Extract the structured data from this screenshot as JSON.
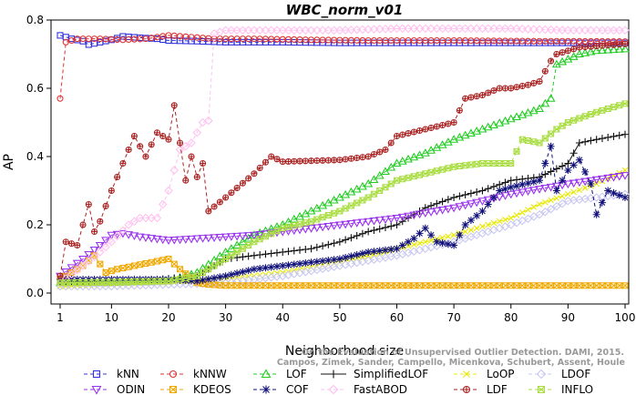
{
  "chart_data": {
    "type": "line",
    "title": "WBC_norm_v01",
    "xlabel": "Neighborhood size",
    "ylabel": "AP",
    "xlim": [
      0,
      100
    ],
    "ylim": [
      0,
      0.8
    ],
    "xticks": [
      1,
      10,
      20,
      30,
      40,
      50,
      60,
      70,
      80,
      90,
      100
    ],
    "yticks": [
      0.0,
      0.2,
      0.4,
      0.6,
      0.8
    ],
    "grid": false,
    "legend_position": "bottom",
    "credit": "Campos, Zimek, Sander, Campello, Micenkova, Schubert, Assent, Houle",
    "credit_line1": "On the Evaluation of Unsupervised Outlier Detection. DAMI, 2015.",
    "series": [
      {
        "name": "kNN",
        "color": "#3333dd",
        "marker": "square",
        "dash": "4,3",
        "points": [
          [
            1,
            0.755
          ],
          [
            3,
            0.745
          ],
          [
            5,
            0.738
          ],
          [
            6,
            0.728
          ],
          [
            8,
            0.735
          ],
          [
            10,
            0.742
          ],
          [
            12,
            0.752
          ],
          [
            15,
            0.748
          ],
          [
            18,
            0.745
          ],
          [
            20,
            0.74
          ],
          [
            25,
            0.738
          ],
          [
            30,
            0.735
          ],
          [
            40,
            0.735
          ],
          [
            50,
            0.733
          ],
          [
            60,
            0.733
          ],
          [
            70,
            0.733
          ],
          [
            80,
            0.733
          ],
          [
            90,
            0.733
          ],
          [
            100,
            0.733
          ]
        ]
      },
      {
        "name": "kNNW",
        "color": "#dd3333",
        "marker": "circle",
        "dash": "4,3",
        "points": [
          [
            1,
            0.57
          ],
          [
            2,
            0.735
          ],
          [
            4,
            0.745
          ],
          [
            8,
            0.745
          ],
          [
            12,
            0.742
          ],
          [
            16,
            0.745
          ],
          [
            20,
            0.755
          ],
          [
            24,
            0.75
          ],
          [
            28,
            0.745
          ],
          [
            35,
            0.745
          ],
          [
            45,
            0.742
          ],
          [
            55,
            0.74
          ],
          [
            70,
            0.74
          ],
          [
            85,
            0.738
          ],
          [
            90,
            0.738
          ],
          [
            100,
            0.737
          ]
        ]
      },
      {
        "name": "LOF",
        "color": "#22cc22",
        "marker": "triangle",
        "dash": "4,3",
        "points": [
          [
            1,
            0.03
          ],
          [
            10,
            0.03
          ],
          [
            20,
            0.035
          ],
          [
            25,
            0.06
          ],
          [
            30,
            0.12
          ],
          [
            35,
            0.17
          ],
          [
            40,
            0.2
          ],
          [
            45,
            0.24
          ],
          [
            50,
            0.28
          ],
          [
            55,
            0.32
          ],
          [
            60,
            0.38
          ],
          [
            65,
            0.41
          ],
          [
            70,
            0.45
          ],
          [
            75,
            0.48
          ],
          [
            80,
            0.51
          ],
          [
            85,
            0.54
          ],
          [
            87,
            0.57
          ],
          [
            88,
            0.67
          ],
          [
            92,
            0.7
          ],
          [
            95,
            0.71
          ],
          [
            100,
            0.715
          ]
        ]
      },
      {
        "name": "SimplifiedLOF",
        "color": "#111111",
        "marker": "plus",
        "dash": "",
        "points": [
          [
            1,
            0.03
          ],
          [
            15,
            0.035
          ],
          [
            25,
            0.05
          ],
          [
            28,
            0.08
          ],
          [
            30,
            0.1
          ],
          [
            35,
            0.11
          ],
          [
            40,
            0.12
          ],
          [
            45,
            0.13
          ],
          [
            50,
            0.15
          ],
          [
            55,
            0.18
          ],
          [
            60,
            0.2
          ],
          [
            65,
            0.25
          ],
          [
            70,
            0.28
          ],
          [
            75,
            0.3
          ],
          [
            80,
            0.33
          ],
          [
            85,
            0.34
          ],
          [
            90,
            0.38
          ],
          [
            92,
            0.44
          ],
          [
            95,
            0.45
          ],
          [
            100,
            0.465
          ]
        ]
      },
      {
        "name": "LoOP",
        "color": "#e8e800",
        "marker": "x",
        "dash": "4,3",
        "points": [
          [
            1,
            0.02
          ],
          [
            10,
            0.025
          ],
          [
            20,
            0.03
          ],
          [
            30,
            0.04
          ],
          [
            40,
            0.06
          ],
          [
            50,
            0.09
          ],
          [
            60,
            0.13
          ],
          [
            70,
            0.17
          ],
          [
            80,
            0.22
          ],
          [
            85,
            0.26
          ],
          [
            90,
            0.29
          ],
          [
            95,
            0.32
          ],
          [
            100,
            0.36
          ]
        ]
      },
      {
        "name": "LDOF",
        "color": "#c8c8f0",
        "marker": "diamond",
        "dash": "4,3",
        "points": [
          [
            1,
            0.02
          ],
          [
            10,
            0.02
          ],
          [
            20,
            0.025
          ],
          [
            30,
            0.03
          ],
          [
            40,
            0.05
          ],
          [
            50,
            0.08
          ],
          [
            60,
            0.11
          ],
          [
            70,
            0.15
          ],
          [
            80,
            0.2
          ],
          [
            85,
            0.23
          ],
          [
            90,
            0.27
          ],
          [
            100,
            0.29
          ]
        ]
      },
      {
        "name": "ODIN",
        "color": "#9933ee",
        "marker": "triangle-down",
        "dash": "4,3",
        "points": [
          [
            1,
            0.05
          ],
          [
            5,
            0.1
          ],
          [
            8,
            0.14
          ],
          [
            10,
            0.17
          ],
          [
            12,
            0.175
          ],
          [
            15,
            0.165
          ],
          [
            20,
            0.155
          ],
          [
            25,
            0.16
          ],
          [
            30,
            0.165
          ],
          [
            35,
            0.17
          ],
          [
            40,
            0.18
          ],
          [
            50,
            0.2
          ],
          [
            60,
            0.22
          ],
          [
            70,
            0.25
          ],
          [
            80,
            0.29
          ],
          [
            90,
            0.32
          ],
          [
            100,
            0.345
          ]
        ]
      },
      {
        "name": "KDEOS",
        "color": "#f0a800",
        "marker": "square-x",
        "dash": "4,3",
        "points": [
          [
            1,
            0.04
          ],
          [
            3,
            0.06
          ],
          [
            5,
            0.08
          ],
          [
            7,
            0.11
          ],
          [
            9,
            0.06
          ],
          [
            11,
            0.07
          ],
          [
            14,
            0.08
          ],
          [
            17,
            0.09
          ],
          [
            20,
            0.1
          ],
          [
            22,
            0.07
          ],
          [
            25,
            0.03
          ],
          [
            27,
            0.025
          ],
          [
            30,
            0.022
          ],
          [
            50,
            0.022
          ],
          [
            70,
            0.022
          ],
          [
            100,
            0.022
          ]
        ]
      },
      {
        "name": "COF",
        "color": "#11117a",
        "marker": "star",
        "dash": "4,3",
        "points": [
          [
            1,
            0.04
          ],
          [
            10,
            0.04
          ],
          [
            20,
            0.04
          ],
          [
            25,
            0.035
          ],
          [
            30,
            0.05
          ],
          [
            35,
            0.07
          ],
          [
            40,
            0.08
          ],
          [
            45,
            0.09
          ],
          [
            50,
            0.1
          ],
          [
            55,
            0.12
          ],
          [
            60,
            0.13
          ],
          [
            63,
            0.16
          ],
          [
            65,
            0.19
          ],
          [
            67,
            0.15
          ],
          [
            70,
            0.14
          ],
          [
            72,
            0.2
          ],
          [
            75,
            0.24
          ],
          [
            78,
            0.3
          ],
          [
            80,
            0.31
          ],
          [
            85,
            0.33
          ],
          [
            87,
            0.43
          ],
          [
            88,
            0.3
          ],
          [
            90,
            0.36
          ],
          [
            92,
            0.39
          ],
          [
            94,
            0.32
          ],
          [
            95,
            0.23
          ],
          [
            97,
            0.3
          ],
          [
            100,
            0.28
          ]
        ]
      },
      {
        "name": "FastABOD",
        "color": "#ffc0f0",
        "marker": "diamond",
        "dash": "4,3",
        "points": [
          [
            1,
            0.03
          ],
          [
            5,
            0.08
          ],
          [
            8,
            0.12
          ],
          [
            10,
            0.15
          ],
          [
            13,
            0.2
          ],
          [
            15,
            0.22
          ],
          [
            18,
            0.22
          ],
          [
            20,
            0.3
          ],
          [
            22,
            0.42
          ],
          [
            24,
            0.44
          ],
          [
            26,
            0.5
          ],
          [
            27,
            0.505
          ],
          [
            28,
            0.76
          ],
          [
            30,
            0.77
          ],
          [
            40,
            0.77
          ],
          [
            50,
            0.77
          ],
          [
            60,
            0.775
          ],
          [
            70,
            0.775
          ],
          [
            80,
            0.775
          ],
          [
            90,
            0.77
          ],
          [
            100,
            0.77
          ]
        ]
      },
      {
        "name": "LDF",
        "color": "#aa2222",
        "marker": "circle-plus",
        "dash": "4,3",
        "points": [
          [
            1,
            0.05
          ],
          [
            2,
            0.15
          ],
          [
            4,
            0.14
          ],
          [
            6,
            0.26
          ],
          [
            7,
            0.18
          ],
          [
            8,
            0.21
          ],
          [
            10,
            0.3
          ],
          [
            12,
            0.38
          ],
          [
            14,
            0.46
          ],
          [
            16,
            0.4
          ],
          [
            18,
            0.47
          ],
          [
            20,
            0.45
          ],
          [
            21,
            0.55
          ],
          [
            23,
            0.33
          ],
          [
            24,
            0.4
          ],
          [
            25,
            0.34
          ],
          [
            26,
            0.38
          ],
          [
            27,
            0.24
          ],
          [
            30,
            0.28
          ],
          [
            35,
            0.35
          ],
          [
            38,
            0.4
          ],
          [
            40,
            0.385
          ],
          [
            50,
            0.39
          ],
          [
            55,
            0.4
          ],
          [
            58,
            0.42
          ],
          [
            60,
            0.46
          ],
          [
            65,
            0.48
          ],
          [
            70,
            0.5
          ],
          [
            72,
            0.57
          ],
          [
            75,
            0.58
          ],
          [
            78,
            0.6
          ],
          [
            80,
            0.6
          ],
          [
            83,
            0.61
          ],
          [
            85,
            0.62
          ],
          [
            87,
            0.68
          ],
          [
            88,
            0.7
          ],
          [
            92,
            0.72
          ],
          [
            100,
            0.73
          ]
        ]
      },
      {
        "name": "INFLO",
        "color": "#aadd44",
        "marker": "hourglass",
        "dash": "4,3",
        "points": [
          [
            1,
            0.03
          ],
          [
            20,
            0.035
          ],
          [
            25,
            0.05
          ],
          [
            30,
            0.1
          ],
          [
            35,
            0.15
          ],
          [
            40,
            0.19
          ],
          [
            45,
            0.21
          ],
          [
            50,
            0.24
          ],
          [
            55,
            0.28
          ],
          [
            60,
            0.33
          ],
          [
            65,
            0.35
          ],
          [
            70,
            0.37
          ],
          [
            75,
            0.38
          ],
          [
            80,
            0.38
          ],
          [
            82,
            0.45
          ],
          [
            85,
            0.44
          ],
          [
            88,
            0.48
          ],
          [
            90,
            0.5
          ],
          [
            95,
            0.53
          ],
          [
            100,
            0.555
          ]
        ]
      }
    ],
    "legend_rows": [
      [
        "kNN",
        "kNNW",
        "LOF",
        "SimplifiedLOF",
        "LoOP",
        "LDOF"
      ],
      [
        "ODIN",
        "KDEOS",
        "COF",
        "FastABOD",
        "LDF",
        "INFLO"
      ]
    ]
  }
}
